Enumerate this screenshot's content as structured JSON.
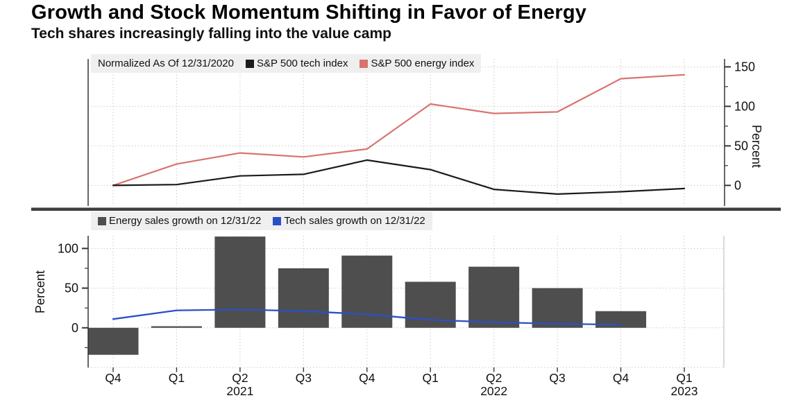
{
  "header": {
    "title": "Growth and Stock Momentum Shifting in Favor of Energy",
    "subtitle": "Tech shares increasingly falling into the value camp"
  },
  "top_chart": {
    "legend_note": "Normalized As Of 12/31/2020"
  },
  "x_axis": {
    "quarters": [
      "Q4",
      "Q1",
      "Q2",
      "Q3",
      "Q4",
      "Q1",
      "Q2",
      "Q3",
      "Q4",
      "Q1"
    ],
    "years": [
      {
        "index": 2,
        "label": "2021"
      },
      {
        "index": 6,
        "label": "2022"
      },
      {
        "index": 9,
        "label": "2023"
      }
    ]
  },
  "colors": {
    "grid": "#c9c9c9",
    "axis": "#333333",
    "axis_light": "#b5b5b5",
    "divider": "#3f3f3f",
    "tick_text": "#111111",
    "legend_bg": "#efefef"
  },
  "chart_data": [
    {
      "type": "line",
      "panel": "top",
      "note": "Normalized As Of 12/31/2020",
      "x": [
        "Q4 2020",
        "Q1 2021",
        "Q2 2021",
        "Q3 2021",
        "Q4 2021",
        "Q1 2022",
        "Q2 2022",
        "Q3 2022",
        "Q4 2022",
        "Q1 2023"
      ],
      "series": [
        {
          "name": "S&P 500 tech index",
          "color": "#1a1a1a",
          "values": [
            0,
            1,
            12,
            14,
            32,
            20,
            -5,
            -11,
            -8,
            -4
          ]
        },
        {
          "name": "S&P 500 energy index",
          "color": "#d8736e",
          "values": [
            0,
            27,
            41,
            36,
            46,
            103,
            91,
            93,
            135,
            140
          ]
        }
      ],
      "ylabel": "Percent",
      "yticks": [
        0,
        50,
        100,
        150
      ],
      "yticks_minor": [
        25,
        75,
        125
      ],
      "ylim": [
        -26,
        160
      ],
      "legend_position": "top-left",
      "grid": true,
      "y_axis_side": "right"
    },
    {
      "type": "bar+line",
      "panel": "bottom",
      "x": [
        "Q4 2020",
        "Q1 2021",
        "Q2 2021",
        "Q3 2021",
        "Q4 2021",
        "Q1 2022",
        "Q2 2022",
        "Q3 2022",
        "Q4 2022",
        "Q1 2023"
      ],
      "series": [
        {
          "name": "Energy sales growth on 12/31/22",
          "type": "bar",
          "color": "#4f4e4e",
          "values": [
            -34,
            2,
            115,
            75,
            91,
            58,
            77,
            50,
            21,
            null
          ]
        },
        {
          "name": "Tech sales growth on 12/31/22",
          "type": "line",
          "color": "#2b50c3",
          "values": [
            11,
            22,
            23,
            21,
            17,
            10,
            7,
            5,
            4,
            null
          ]
        }
      ],
      "ylabel": "Percent",
      "yticks": [
        0,
        50,
        100
      ],
      "yticks_minor": [
        -25,
        25,
        75
      ],
      "ylim": [
        -50,
        116
      ],
      "legend_position": "top-left",
      "grid": true,
      "y_axis_side": "left"
    }
  ]
}
